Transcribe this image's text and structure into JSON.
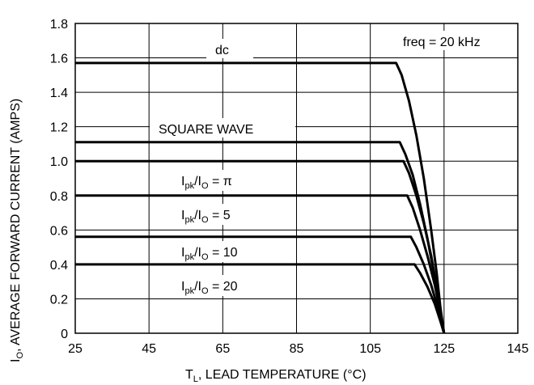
{
  "chart_data": {
    "type": "line",
    "xlabel": {
      "main": "T",
      "sub": "L",
      "rest": ", LEAD TEMPERATURE (°C)"
    },
    "ylabel": {
      "main": "I",
      "sub": "O",
      "rest": ", AVERAGE FORWARD CURRENT (AMPS)"
    },
    "xlim": [
      25,
      145
    ],
    "ylim": [
      0,
      1.8
    ],
    "xticks": [
      "25",
      "45",
      "65",
      "85",
      "105",
      "125",
      "145"
    ],
    "yticks": [
      "0",
      "0.2",
      "0.4",
      "0.6",
      "0.8",
      "1.0",
      "1.2",
      "1.4",
      "1.6",
      "1.8"
    ],
    "grid": true,
    "note": "freq = 20 kHz",
    "series": [
      {
        "name": "dc",
        "x": [
          25,
          112,
          113.5,
          115.5,
          117.5,
          119.5,
          121.5,
          123,
          124,
          125
        ],
        "y": [
          1.57,
          1.57,
          1.5,
          1.35,
          1.15,
          0.9,
          0.6,
          0.35,
          0.15,
          0
        ]
      },
      {
        "name": "SQUARE WAVE",
        "x": [
          25,
          113,
          114.5,
          116.5,
          118.5,
          120.5,
          122.5,
          124,
          125
        ],
        "y": [
          1.11,
          1.11,
          1.04,
          0.92,
          0.75,
          0.55,
          0.32,
          0.13,
          0
        ]
      },
      {
        "name": "I_pk/I_O = π",
        "x": [
          25,
          114,
          115.5,
          117.5,
          119.5,
          121.5,
          123,
          124,
          125
        ],
        "y": [
          1.0,
          1.0,
          0.93,
          0.8,
          0.64,
          0.45,
          0.27,
          0.12,
          0
        ]
      },
      {
        "name": "I_pk/I_O = 5",
        "x": [
          25,
          115,
          116.5,
          118.5,
          120.5,
          122.5,
          124,
          125
        ],
        "y": [
          0.8,
          0.8,
          0.73,
          0.6,
          0.45,
          0.28,
          0.12,
          0
        ]
      },
      {
        "name": "I_pk/I_O = 10",
        "x": [
          25,
          116,
          117.5,
          119.5,
          121.5,
          123,
          124,
          125
        ],
        "y": [
          0.56,
          0.56,
          0.5,
          0.4,
          0.28,
          0.17,
          0.08,
          0
        ]
      },
      {
        "name": "I_pk/I_O = 20",
        "x": [
          25,
          117,
          118.5,
          120.5,
          122.5,
          124,
          125
        ],
        "y": [
          0.4,
          0.4,
          0.35,
          0.27,
          0.17,
          0.07,
          0
        ]
      }
    ],
    "annotations": {
      "dc": "dc",
      "square": "SQUARE WAVE",
      "pi": {
        "lhs_main": "I",
        "lhs_sub": "pk",
        "mid": "/I",
        "mid_sub": "O",
        "rhs": " = π"
      },
      "five": {
        "lhs_main": "I",
        "lhs_sub": "pk",
        "mid": "/I",
        "mid_sub": "O",
        "rhs": " = 5"
      },
      "ten": {
        "lhs_main": "I",
        "lhs_sub": "pk",
        "mid": "/I",
        "mid_sub": "O",
        "rhs": " = 10"
      },
      "twenty": {
        "lhs_main": "I",
        "lhs_sub": "pk",
        "mid": "/I",
        "mid_sub": "O",
        "rhs": " = 20"
      }
    }
  }
}
